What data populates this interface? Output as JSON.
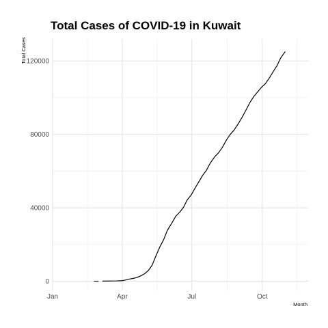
{
  "chart_data": {
    "type": "line",
    "title": "Total Cases of COVID-19 in Kuwait",
    "xlabel": "Month",
    "ylabel": "Total Cases",
    "x_ticks": [
      "Jan",
      "Apr",
      "Jul",
      "Oct"
    ],
    "y_ticks": [
      "0",
      "40000",
      "80000",
      "120000"
    ],
    "y_tick_values": [
      0,
      40000,
      80000,
      120000
    ],
    "xlim": [
      "2020-01-01",
      "2020-11-30"
    ],
    "ylim": [
      -5000,
      132000
    ],
    "grid": true,
    "line_color": "#000000",
    "series": [
      {
        "name": "",
        "points": [
          [
            "2020-02-24",
            11
          ],
          [
            "2020-03-01",
            45
          ]
        ]
      },
      {
        "name": "",
        "points": [
          [
            "2020-03-06",
            58
          ],
          [
            "2020-03-15",
            112
          ],
          [
            "2020-03-25",
            195
          ],
          [
            "2020-04-01",
            317
          ],
          [
            "2020-04-05",
            665
          ],
          [
            "2020-04-10",
            1154
          ],
          [
            "2020-04-15",
            1524
          ],
          [
            "2020-04-20",
            1995
          ],
          [
            "2020-04-25",
            2892
          ],
          [
            "2020-04-30",
            4024
          ],
          [
            "2020-05-05",
            5804
          ],
          [
            "2020-05-10",
            8688
          ],
          [
            "2020-05-15",
            13802
          ],
          [
            "2020-05-20",
            18609
          ],
          [
            "2020-05-25",
            22575
          ],
          [
            "2020-05-30",
            27762
          ],
          [
            "2020-06-05",
            31848
          ],
          [
            "2020-06-10",
            35466
          ],
          [
            "2020-06-15",
            37531
          ],
          [
            "2020-06-20",
            40291
          ],
          [
            "2020-06-25",
            44391
          ],
          [
            "2020-06-30",
            46940
          ],
          [
            "2020-07-05",
            50644
          ],
          [
            "2020-07-10",
            54058
          ],
          [
            "2020-07-15",
            57668
          ],
          [
            "2020-07-20",
            60434
          ],
          [
            "2020-07-25",
            64379
          ],
          [
            "2020-07-31",
            67911
          ],
          [
            "2020-08-05",
            70045
          ],
          [
            "2020-08-10",
            73068
          ],
          [
            "2020-08-15",
            76827
          ],
          [
            "2020-08-20",
            79957
          ],
          [
            "2020-08-25",
            82271
          ],
          [
            "2020-08-31",
            86027
          ],
          [
            "2020-09-05",
            89582
          ],
          [
            "2020-09-10",
            93475
          ],
          [
            "2020-09-15",
            97493
          ],
          [
            "2020-09-20",
            100683
          ],
          [
            "2020-09-25",
            103199
          ],
          [
            "2020-09-30",
            105676
          ],
          [
            "2020-10-05",
            107592
          ],
          [
            "2020-10-10",
            110568
          ],
          [
            "2020-10-15",
            113997
          ],
          [
            "2020-10-20",
            117255
          ],
          [
            "2020-10-25",
            121635
          ],
          [
            "2020-10-31",
            125100
          ]
        ]
      }
    ]
  }
}
